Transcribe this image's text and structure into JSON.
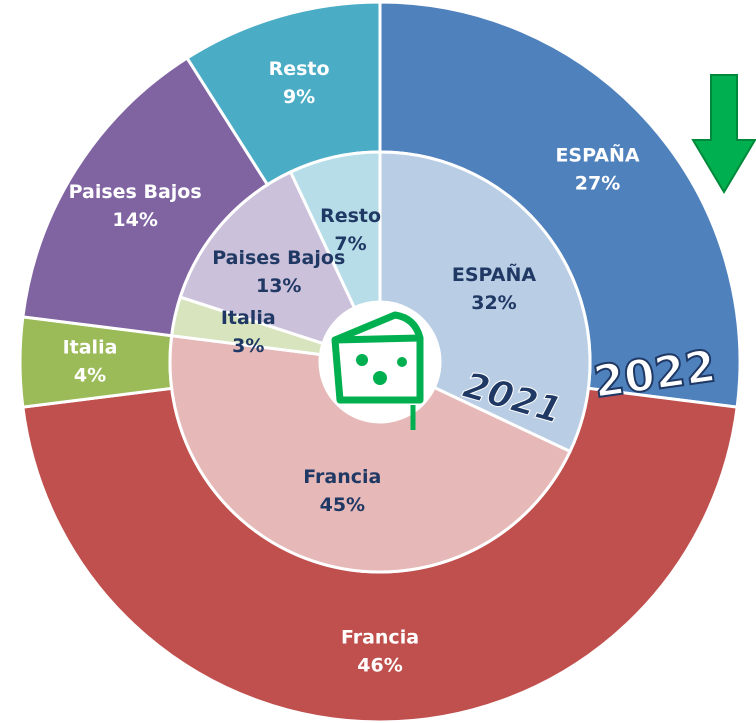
{
  "chart_data": {
    "type": "donut",
    "categories": [
      "ESPAÑA",
      "Francia",
      "Italia",
      "Paises Bajos",
      "Resto"
    ],
    "series": [
      {
        "name": "2022",
        "values": [
          27,
          46,
          4,
          14,
          9
        ],
        "value_labels": [
          "27%",
          "46%",
          "4%",
          "14%",
          "9%"
        ],
        "colors": [
          "#4f81bd",
          "#c0504d",
          "#9bbb59",
          "#8064a2",
          "#4bacc6"
        ]
      },
      {
        "name": "2021",
        "values": [
          32,
          45,
          3,
          13,
          7
        ],
        "value_labels": [
          "32%",
          "45%",
          "3%",
          "13%",
          "7%"
        ],
        "colors": [
          "#b9cde5",
          "#e6b9b8",
          "#d7e4bd",
          "#ccc1da",
          "#b7dee8"
        ]
      }
    ]
  }
}
